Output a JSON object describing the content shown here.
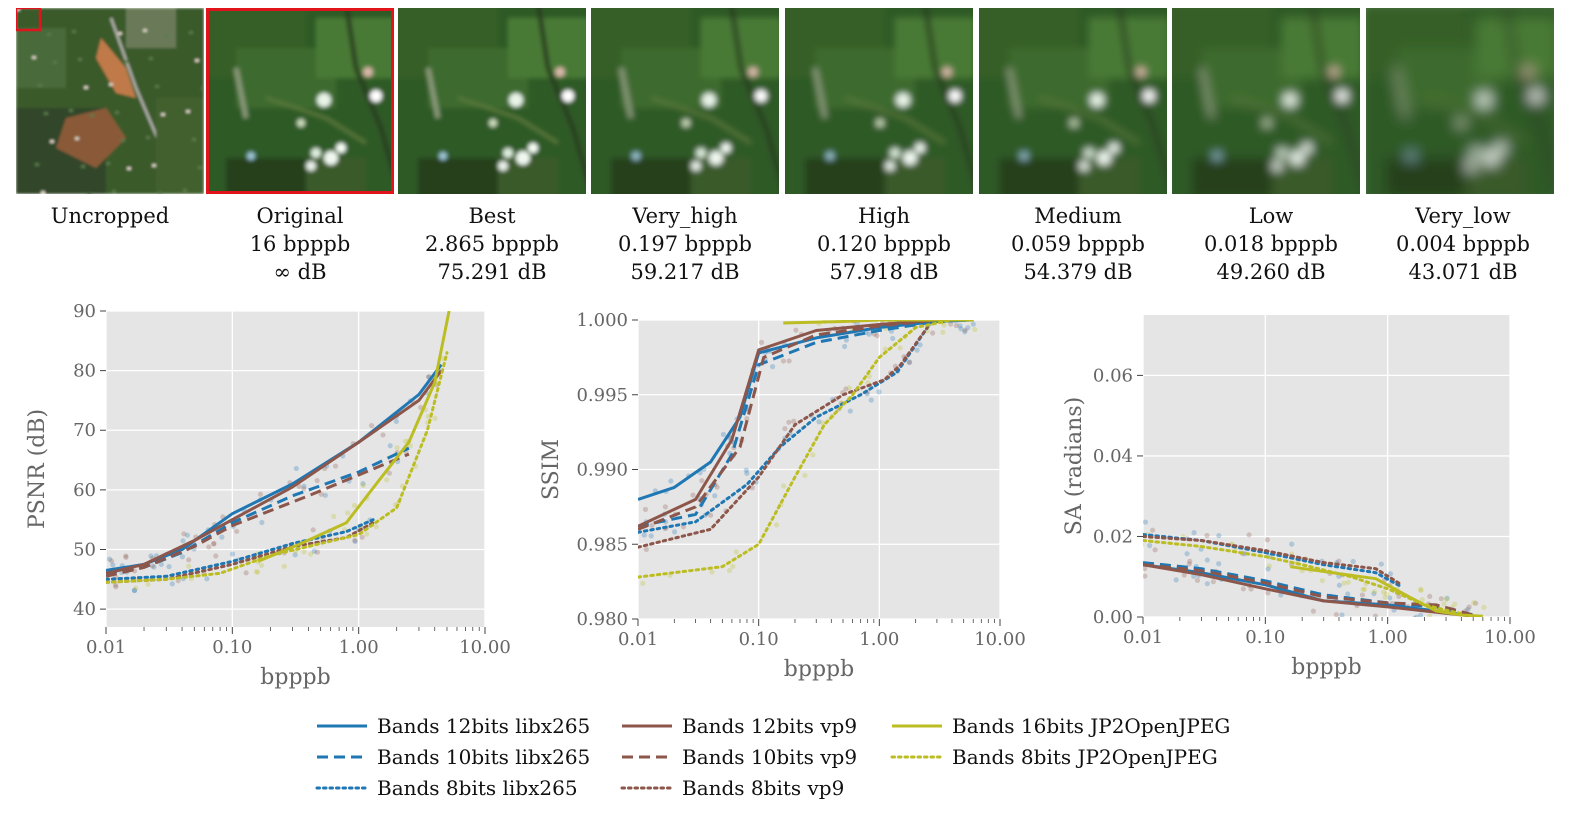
{
  "thumbnails": [
    {
      "id": "uncropped",
      "label": "Uncropped",
      "bpppb": "",
      "psnr": "",
      "tone": "overview"
    },
    {
      "id": "original",
      "label": "Original",
      "bpppb": "16 bpppb",
      "psnr": "∞ dB",
      "tone": "crop",
      "blur": 0,
      "selected": true
    },
    {
      "id": "best",
      "label": "Best",
      "bpppb": "2.865 bpppb",
      "psnr": "75.291 dB",
      "tone": "crop",
      "blur": 0
    },
    {
      "id": "very_high",
      "label": "Very_high",
      "bpppb": "0.197 bpppb",
      "psnr": "59.217 dB",
      "tone": "crop",
      "blur": 0.3
    },
    {
      "id": "high",
      "label": "High",
      "bpppb": "0.120 bpppb",
      "psnr": "57.918 dB",
      "tone": "crop",
      "blur": 0.5
    },
    {
      "id": "medium",
      "label": "Medium",
      "bpppb": "0.059 bpppb",
      "psnr": "54.379 dB",
      "tone": "crop",
      "blur": 0.8
    },
    {
      "id": "low",
      "label": "Low",
      "bpppb": "0.018 bpppb",
      "psnr": "49.260 dB",
      "tone": "crop",
      "blur": 1.3
    },
    {
      "id": "very_low",
      "label": "Very_low",
      "bpppb": "0.004 bpppb",
      "psnr": "43.071   dB",
      "tone": "crop",
      "blur": 2.2
    }
  ],
  "colors": {
    "libx265": "#1f77b4",
    "vp9": "#8c564b",
    "jp2": "#bcbd22",
    "plot_bg": "#e5e5e5",
    "grid": "#ffffff",
    "highlight": "#e0141a"
  },
  "chart_data": [
    {
      "type": "line",
      "id": "psnr",
      "xlabel": "bpppb",
      "ylabel": "PSNR (dB)",
      "xscale": "log",
      "xlim": [
        0.01,
        10
      ],
      "ylim": [
        37,
        90
      ],
      "xticks": [
        0.01,
        0.1,
        1,
        10
      ],
      "xtick_labels": [
        "0.01",
        "0.10",
        "1.00",
        "10.00"
      ],
      "yticks": [
        40,
        50,
        60,
        70,
        80,
        90
      ],
      "ytick_labels": [
        "40",
        "50",
        "60",
        "70",
        "80",
        "90"
      ],
      "grid": true,
      "series": [
        {
          "name": "Bands 12bits libx265",
          "codec": "libx265",
          "dash": "solid",
          "x": [
            0.01,
            0.02,
            0.04,
            0.1,
            0.3,
            1,
            3,
            4.5
          ],
          "y": [
            46.5,
            47.5,
            50,
            56,
            61,
            68,
            76,
            81
          ]
        },
        {
          "name": "Bands 10bits libx265",
          "codec": "libx265",
          "dash": "dashed",
          "x": [
            0.01,
            0.02,
            0.04,
            0.1,
            0.3,
            1,
            2.5
          ],
          "y": [
            46,
            47,
            49.5,
            54.5,
            59,
            63,
            67
          ]
        },
        {
          "name": "Bands 8bits libx265",
          "codec": "libx265",
          "dash": "dotted",
          "x": [
            0.01,
            0.03,
            0.1,
            0.3,
            0.8,
            1.3
          ],
          "y": [
            45,
            45.5,
            48,
            51,
            53,
            55
          ]
        },
        {
          "name": "Bands 12bits vp9",
          "codec": "vp9",
          "dash": "solid",
          "x": [
            0.01,
            0.02,
            0.05,
            0.1,
            0.3,
            1,
            3,
            4.5
          ],
          "y": [
            46,
            47.5,
            51.5,
            55,
            60.5,
            68,
            75,
            80
          ]
        },
        {
          "name": "Bands 10bits vp9",
          "codec": "vp9",
          "dash": "dashed",
          "x": [
            0.01,
            0.02,
            0.05,
            0.1,
            0.4,
            1,
            2.5
          ],
          "y": [
            45.5,
            47,
            50.5,
            54,
            59,
            62.5,
            66
          ]
        },
        {
          "name": "Bands 8bits vp9",
          "codec": "vp9",
          "dash": "dotted",
          "x": [
            0.01,
            0.03,
            0.1,
            0.3,
            0.8,
            1.3
          ],
          "y": [
            44.5,
            45,
            47.5,
            50.5,
            52,
            54.5
          ]
        },
        {
          "name": "Bands 16bits JP2OpenJPEG",
          "codec": "jp2",
          "dash": "solid",
          "x": [
            0.16,
            0.35,
            0.8,
            1.5,
            2.5,
            4,
            5.2
          ],
          "y": [
            48,
            51,
            54.5,
            62,
            68,
            78,
            90
          ]
        },
        {
          "name": "Bands 8bits JP2OpenJPEG",
          "codec": "jp2",
          "dash": "dotted",
          "x": [
            0.01,
            0.03,
            0.08,
            0.2,
            0.5,
            1,
            2,
            3.5,
            5
          ],
          "y": [
            44.5,
            45,
            46,
            49,
            51,
            52.5,
            57,
            70,
            83
          ]
        }
      ]
    },
    {
      "type": "line",
      "id": "ssim",
      "xlabel": "bpppb",
      "ylabel": "SSIM",
      "xscale": "log",
      "xlim": [
        0.01,
        10
      ],
      "ylim": [
        0.98,
        1.0
      ],
      "xticks": [
        0.01,
        0.1,
        1,
        10
      ],
      "xtick_labels": [
        "0.01",
        "0.10",
        "1.00",
        "10.00"
      ],
      "yticks": [
        0.98,
        0.985,
        0.99,
        0.995,
        1.0
      ],
      "ytick_labels": [
        "0.980",
        "0.985",
        "0.990",
        "0.995",
        "1.000"
      ],
      "grid": true,
      "series": [
        {
          "name": "Bands 12bits libx265",
          "codec": "libx265",
          "dash": "solid",
          "x": [
            0.01,
            0.02,
            0.04,
            0.07,
            0.1,
            0.3,
            1,
            3,
            6
          ],
          "y": [
            0.988,
            0.9888,
            0.9905,
            0.9935,
            0.9978,
            0.9988,
            0.9995,
            0.9999,
            1.0
          ]
        },
        {
          "name": "Bands 10bits libx265",
          "codec": "libx265",
          "dash": "dashed",
          "x": [
            0.01,
            0.03,
            0.06,
            0.1,
            0.3,
            1,
            3,
            6
          ],
          "y": [
            0.9862,
            0.987,
            0.991,
            0.997,
            0.9985,
            0.9993,
            0.9999,
            1.0
          ]
        },
        {
          "name": "Bands 8bits libx265",
          "codec": "libx265",
          "dash": "dotted",
          "x": [
            0.01,
            0.03,
            0.08,
            0.15,
            0.3,
            0.7,
            1.4,
            2.5
          ],
          "y": [
            0.9858,
            0.9865,
            0.989,
            0.9915,
            0.9935,
            0.995,
            0.9965,
            0.9995
          ]
        },
        {
          "name": "Bands 12bits vp9",
          "codec": "vp9",
          "dash": "solid",
          "x": [
            0.01,
            0.03,
            0.06,
            0.1,
            0.3,
            1,
            3,
            6
          ],
          "y": [
            0.9862,
            0.988,
            0.992,
            0.998,
            0.9993,
            0.9997,
            1.0,
            1.0
          ]
        },
        {
          "name": "Bands 10bits vp9",
          "codec": "vp9",
          "dash": "dashed",
          "x": [
            0.01,
            0.03,
            0.07,
            0.11,
            0.3,
            1,
            3,
            6
          ],
          "y": [
            0.986,
            0.9875,
            0.9915,
            0.9975,
            0.999,
            0.9996,
            1.0,
            1.0
          ]
        },
        {
          "name": "Bands 8bits vp9",
          "codec": "vp9",
          "dash": "dotted",
          "x": [
            0.01,
            0.04,
            0.1,
            0.2,
            0.5,
            1.1,
            1.5,
            2.5
          ],
          "y": [
            0.9848,
            0.986,
            0.9895,
            0.993,
            0.995,
            0.996,
            0.997,
            0.9995
          ]
        },
        {
          "name": "Bands 16bits JP2OpenJPEG",
          "codec": "jp2",
          "dash": "solid",
          "x": [
            0.16,
            0.5,
            1,
            2.5,
            6
          ],
          "y": [
            0.9998,
            0.9999,
            1.0,
            1.0,
            1.0
          ]
        },
        {
          "name": "Bands 8bits JP2OpenJPEG",
          "codec": "jp2",
          "dash": "dotted",
          "x": [
            0.01,
            0.05,
            0.1,
            0.2,
            0.35,
            0.6,
            1,
            2,
            4
          ],
          "y": [
            0.9828,
            0.9835,
            0.985,
            0.9895,
            0.993,
            0.995,
            0.9975,
            0.9995,
            1.0
          ]
        }
      ]
    },
    {
      "type": "line",
      "id": "sa",
      "xlabel": "bpppb",
      "ylabel": "SA (radians)",
      "xscale": "log",
      "xlim": [
        0.01,
        10
      ],
      "ylim": [
        0,
        0.075
      ],
      "xticks": [
        0.01,
        0.1,
        1,
        10
      ],
      "xtick_labels": [
        "0.01",
        "0.10",
        "1.00",
        "10.00"
      ],
      "yticks": [
        0,
        0.02,
        0.04,
        0.06
      ],
      "ytick_labels": [
        "0.00",
        "0.02",
        "0.04",
        "0.06"
      ],
      "grid": true,
      "series": [
        {
          "name": "Bands 12bits libx265",
          "codec": "libx265",
          "dash": "solid",
          "x": [
            0.01,
            0.03,
            0.1,
            0.3,
            1,
            2.5,
            5
          ],
          "y": [
            0.013,
            0.011,
            0.008,
            0.004,
            0.003,
            0.0015,
            0.0003
          ]
        },
        {
          "name": "Bands 10bits libx265",
          "codec": "libx265",
          "dash": "dashed",
          "x": [
            0.01,
            0.03,
            0.1,
            0.3,
            1,
            2.5,
            5
          ],
          "y": [
            0.0135,
            0.012,
            0.009,
            0.0055,
            0.0035,
            0.0025,
            0.0005
          ]
        },
        {
          "name": "Bands 8bits libx265",
          "codec": "libx265",
          "dash": "dotted",
          "x": [
            0.01,
            0.03,
            0.1,
            0.3,
            0.8,
            1.3
          ],
          "y": [
            0.0205,
            0.019,
            0.016,
            0.013,
            0.011,
            0.0075
          ]
        },
        {
          "name": "Bands 12bits vp9",
          "codec": "vp9",
          "dash": "solid",
          "x": [
            0.01,
            0.03,
            0.1,
            0.3,
            1,
            2.5,
            5
          ],
          "y": [
            0.013,
            0.0105,
            0.007,
            0.004,
            0.0025,
            0.0012,
            0.0002
          ]
        },
        {
          "name": "Bands 10bits vp9",
          "codec": "vp9",
          "dash": "dashed",
          "x": [
            0.01,
            0.03,
            0.1,
            0.3,
            1,
            2.5,
            5
          ],
          "y": [
            0.013,
            0.0115,
            0.0085,
            0.005,
            0.0035,
            0.003,
            0.0005
          ]
        },
        {
          "name": "Bands 8bits vp9",
          "codec": "vp9",
          "dash": "dotted",
          "x": [
            0.01,
            0.03,
            0.1,
            0.3,
            0.8,
            1.3
          ],
          "y": [
            0.02,
            0.019,
            0.0165,
            0.0135,
            0.012,
            0.008
          ]
        },
        {
          "name": "Bands 16bits JP2OpenJPEG",
          "codec": "jp2",
          "dash": "solid",
          "x": [
            0.16,
            0.35,
            0.8,
            1.5,
            2.5,
            4,
            6
          ],
          "y": [
            0.0125,
            0.011,
            0.0095,
            0.005,
            0.0015,
            0.0005,
            0.0002
          ]
        },
        {
          "name": "Bands 8bits JP2OpenJPEG",
          "codec": "jp2",
          "dash": "dotted",
          "x": [
            0.01,
            0.03,
            0.1,
            0.2,
            0.5,
            1,
            2,
            4
          ],
          "y": [
            0.019,
            0.0175,
            0.015,
            0.013,
            0.01,
            0.007,
            0.003,
            0.0008
          ]
        }
      ]
    }
  ],
  "legend": [
    {
      "label": "Bands 12bits libx265",
      "codec": "libx265",
      "dash": "solid"
    },
    {
      "label": "Bands 10bits libx265",
      "codec": "libx265",
      "dash": "dashed"
    },
    {
      "label": "Bands 8bits libx265",
      "codec": "libx265",
      "dash": "dotted"
    },
    {
      "label": "Bands 12bits vp9",
      "codec": "vp9",
      "dash": "solid"
    },
    {
      "label": "Bands 10bits vp9",
      "codec": "vp9",
      "dash": "dashed"
    },
    {
      "label": "Bands 8bits vp9",
      "codec": "vp9",
      "dash": "dotted"
    },
    {
      "label": "Bands 16bits JP2OpenJPEG",
      "codec": "jp2",
      "dash": "solid"
    },
    {
      "label": "Bands 8bits JP2OpenJPEG",
      "codec": "jp2",
      "dash": "dotted"
    }
  ]
}
